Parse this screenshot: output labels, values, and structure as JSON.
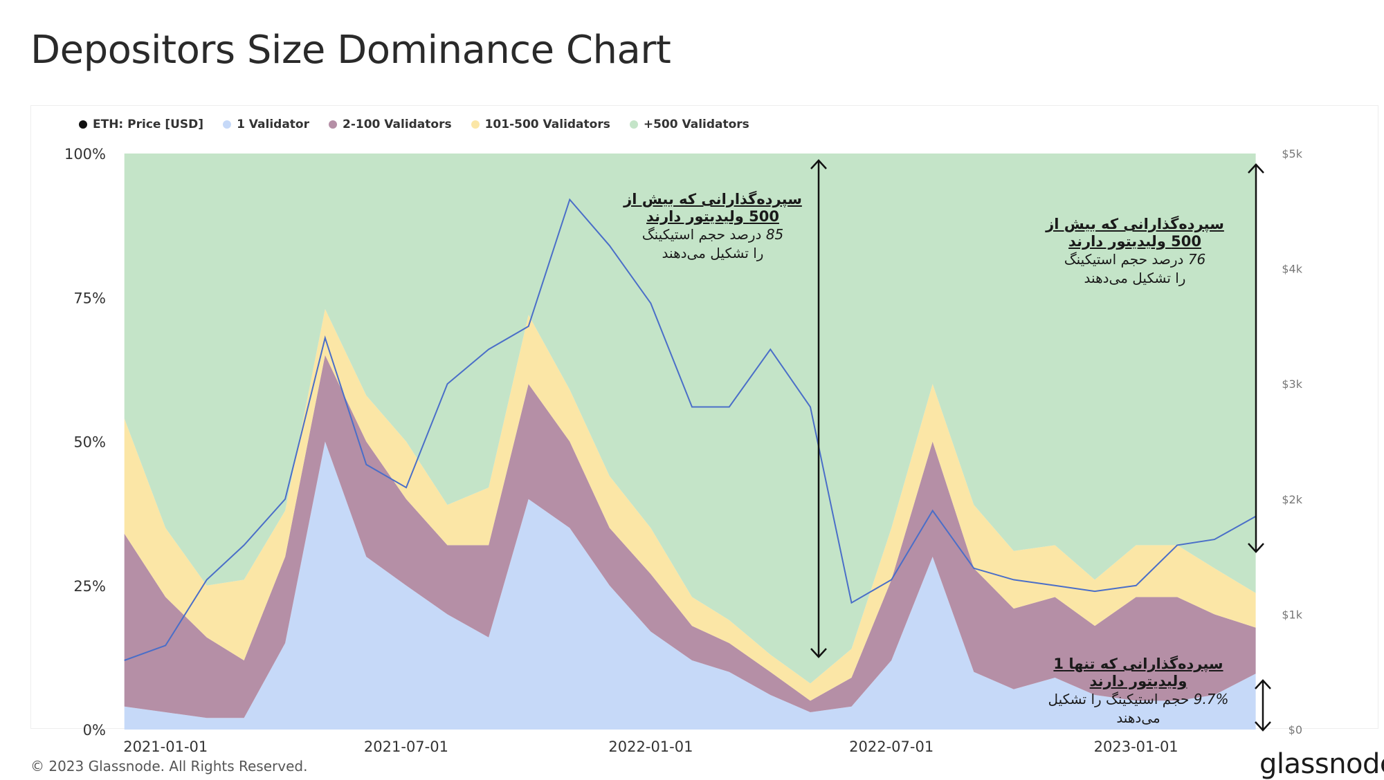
{
  "page": {
    "title": "Depositors Size Dominance Chart"
  },
  "legend": [
    {
      "label": "ETH: Price [USD]",
      "color": "#111111"
    },
    {
      "label": "1 Validator",
      "color": "#c6d9f8"
    },
    {
      "label": "2-100 Validators",
      "color": "#b58fa6"
    },
    {
      "label": "101-500 Validators",
      "color": "#fbe6a6"
    },
    {
      "label": "+500 Validators",
      "color": "#c4e4c8"
    }
  ],
  "annotations": {
    "top_left": {
      "head": "سپرده‌گذارانی که بیش از 500 ولیدیتور دارند",
      "number": "85",
      "line1": "درصد حجم استیکینگ",
      "line2": "را تشکیل می‌دهند"
    },
    "top_right": {
      "head": "سپرده‌گذارانی که بیش از 500 ولیدیتور دارند",
      "number": "76",
      "line1": "درصد حجم استیکینگ",
      "line2": "را تشکیل می‌دهند"
    },
    "bottom_right": {
      "head": "سپرده‌گذارانی که تنها 1 ولیدیتور دارند",
      "number": "9.7%",
      "line1": "حجم استیکینگ را تشکیل",
      "line2": "می‌دهند"
    }
  },
  "footer": {
    "copyright": "© 2023 Glassnode. All Rights Reserved.",
    "brand": "glassnode"
  },
  "chart_data": {
    "type": "area",
    "title": "Depositors Size Dominance Chart",
    "y_left_ticks": [
      "0%",
      "25%",
      "50%",
      "75%",
      "100%"
    ],
    "y_left_range": [
      0,
      100
    ],
    "y_right_ticks": [
      "$0",
      "$1k",
      "$2k",
      "$3k",
      "$4k",
      "$5k"
    ],
    "y_right_range": [
      0,
      5000
    ],
    "x_ticks": [
      "2021-01-01",
      "2021-07-01",
      "2022-01-01",
      "2022-07-01",
      "2023-01-01"
    ],
    "x_range": [
      "2020-11-27",
      "2023-04-08"
    ],
    "stacked_percent": true,
    "series": [
      {
        "name": "1 Validator",
        "color": "#c6d9f8",
        "x": [
          "2020-12-01",
          "2021-01-01",
          "2021-02-01",
          "2021-03-01",
          "2021-04-01",
          "2021-05-01",
          "2021-06-01",
          "2021-07-01",
          "2021-08-01",
          "2021-09-01",
          "2021-10-01",
          "2021-11-01",
          "2021-12-01",
          "2022-01-01",
          "2022-02-01",
          "2022-03-01",
          "2022-04-01",
          "2022-05-01",
          "2022-06-01",
          "2022-07-01",
          "2022-08-01",
          "2022-09-01",
          "2022-10-01",
          "2022-11-01",
          "2022-12-01",
          "2023-01-01",
          "2023-02-01",
          "2023-03-01",
          "2023-04-01"
        ],
        "values": [
          4,
          3,
          2,
          2,
          15,
          50,
          30,
          25,
          20,
          16,
          40,
          35,
          25,
          17,
          12,
          10,
          6,
          3,
          4,
          12,
          30,
          10,
          7,
          9,
          6,
          5,
          5,
          6,
          9.7
        ]
      },
      {
        "name": "2-100 Validators",
        "color": "#b58fa6",
        "x": [
          "2020-12-01",
          "2021-01-01",
          "2021-02-01",
          "2021-03-01",
          "2021-04-01",
          "2021-05-01",
          "2021-06-01",
          "2021-07-01",
          "2021-08-01",
          "2021-09-01",
          "2021-10-01",
          "2021-11-01",
          "2021-12-01",
          "2022-01-01",
          "2022-02-01",
          "2022-03-01",
          "2022-04-01",
          "2022-05-01",
          "2022-06-01",
          "2022-07-01",
          "2022-08-01",
          "2022-09-01",
          "2022-10-01",
          "2022-11-01",
          "2022-12-01",
          "2023-01-01",
          "2023-02-01",
          "2023-03-01",
          "2023-04-01"
        ],
        "values": [
          30,
          20,
          14,
          10,
          15,
          15,
          20,
          15,
          12,
          16,
          20,
          15,
          10,
          10,
          6,
          5,
          4,
          2,
          5,
          14,
          20,
          18,
          14,
          14,
          12,
          18,
          18,
          14,
          8
        ]
      },
      {
        "name": "101-500 Validators",
        "color": "#fbe6a6",
        "x": [
          "2020-12-01",
          "2021-01-01",
          "2021-02-01",
          "2021-03-01",
          "2021-04-01",
          "2021-05-01",
          "2021-06-01",
          "2021-07-01",
          "2021-08-01",
          "2021-09-01",
          "2021-10-01",
          "2021-11-01",
          "2021-12-01",
          "2022-01-01",
          "2022-02-01",
          "2022-03-01",
          "2022-04-01",
          "2022-05-01",
          "2022-06-01",
          "2022-07-01",
          "2022-08-01",
          "2022-09-01",
          "2022-10-01",
          "2022-11-01",
          "2022-12-01",
          "2023-01-01",
          "2023-02-01",
          "2023-03-01",
          "2023-04-01"
        ],
        "values": [
          20,
          12,
          9,
          14,
          8,
          8,
          8,
          10,
          7,
          10,
          12,
          9,
          9,
          8,
          5,
          4,
          3,
          3,
          5,
          9,
          10,
          11,
          10,
          9,
          8,
          9,
          9,
          8,
          6
        ]
      },
      {
        "name": "+500 Validators",
        "color": "#c4e4c8",
        "x": [
          "2020-12-01",
          "2021-01-01",
          "2021-02-01",
          "2021-03-01",
          "2021-04-01",
          "2021-05-01",
          "2021-06-01",
          "2021-07-01",
          "2021-08-01",
          "2021-09-01",
          "2021-10-01",
          "2021-11-01",
          "2021-12-01",
          "2022-01-01",
          "2022-02-01",
          "2022-03-01",
          "2022-04-01",
          "2022-05-01",
          "2022-06-01",
          "2022-07-01",
          "2022-08-01",
          "2022-09-01",
          "2022-10-01",
          "2022-11-01",
          "2022-12-01",
          "2023-01-01",
          "2023-02-01",
          "2023-03-01",
          "2023-04-01"
        ],
        "values": [
          46,
          65,
          75,
          74,
          62,
          27,
          42,
          50,
          61,
          58,
          28,
          41,
          56,
          65,
          77,
          81,
          87,
          92,
          86,
          65,
          40,
          61,
          69,
          68,
          74,
          68,
          68,
          72,
          76.3
        ]
      },
      {
        "name": "ETH: Price [USD]",
        "color": "#4a6ec8",
        "axis": "right",
        "x": [
          "2020-12-01",
          "2021-01-01",
          "2021-02-01",
          "2021-03-01",
          "2021-04-01",
          "2021-05-01",
          "2021-06-01",
          "2021-07-01",
          "2021-08-01",
          "2021-09-01",
          "2021-10-01",
          "2021-11-01",
          "2021-12-01",
          "2022-01-01",
          "2022-02-01",
          "2022-03-01",
          "2022-04-01",
          "2022-05-01",
          "2022-06-01",
          "2022-07-01",
          "2022-08-01",
          "2022-09-01",
          "2022-10-01",
          "2022-11-01",
          "2022-12-01",
          "2023-01-01",
          "2023-02-01",
          "2023-03-01",
          "2023-04-01"
        ],
        "values": [
          600,
          730,
          1300,
          1600,
          2000,
          3400,
          2300,
          2100,
          3000,
          3300,
          3500,
          4600,
          4200,
          3700,
          2800,
          2800,
          3300,
          2800,
          1100,
          1300,
          1900,
          1400,
          1300,
          1250,
          1200,
          1250,
          1600,
          1650,
          1850
        ]
      }
    ]
  }
}
